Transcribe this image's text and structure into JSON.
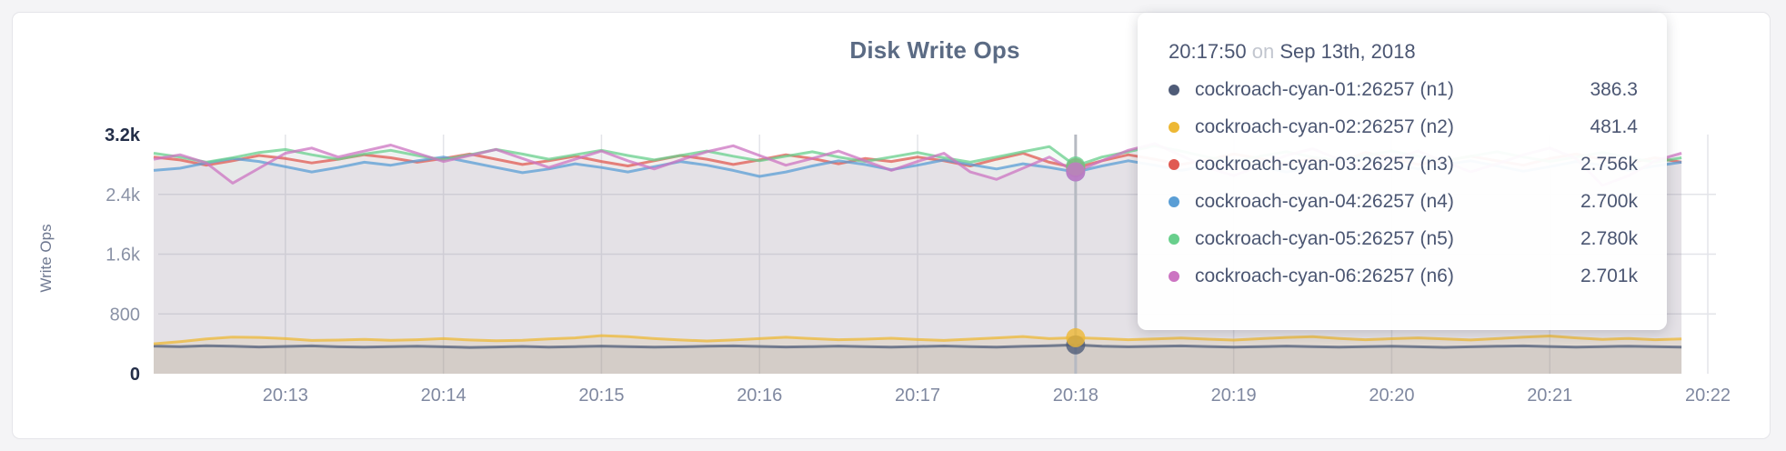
{
  "accent_colors": {
    "card_border": "#e5e5e9",
    "grid": "#e3e4e9",
    "hover_line": "#b6bac2",
    "axis_minmax": "#232e48",
    "axis_mid": "#8a92a6",
    "title": "#5b6b84",
    "tooltip_text": "#4b5672"
  },
  "tooltip": {
    "time": "20:17:50",
    "separator": "on",
    "date": "Sep 13th, 2018",
    "rows": [
      {
        "name": "cockroach-cyan-01:26257 (n1)",
        "value": "386.3",
        "color": "#4f5c78"
      },
      {
        "name": "cockroach-cyan-02:26257 (n2)",
        "value": "481.4",
        "color": "#edb835"
      },
      {
        "name": "cockroach-cyan-03:26257 (n3)",
        "value": "2.756k",
        "color": "#e05a52"
      },
      {
        "name": "cockroach-cyan-04:26257 (n4)",
        "value": "2.700k",
        "color": "#5a9ed5"
      },
      {
        "name": "cockroach-cyan-05:26257 (n5)",
        "value": "2.780k",
        "color": "#68cf8c"
      },
      {
        "name": "cockroach-cyan-06:26257 (n6)",
        "value": "2.701k",
        "color": "#cc74c2"
      }
    ]
  },
  "chart_data": {
    "type": "line",
    "title": "Disk Write Ops",
    "xlabel": "",
    "ylabel": "Write Ops",
    "ylim": [
      0,
      3200
    ],
    "grid": true,
    "legend_position": "hover-tooltip",
    "time_start": "20:12:10",
    "time_interval_sec": 10,
    "hover_index": 35,
    "hover_time": "20:17:50",
    "y_ticks": [
      {
        "v": 0,
        "label": "0"
      },
      {
        "v": 800,
        "label": "800"
      },
      {
        "v": 1600,
        "label": "1.6k"
      },
      {
        "v": 2400,
        "label": "2.4k"
      },
      {
        "v": 3200,
        "label": "3.2k"
      }
    ],
    "x_ticks": [
      {
        "i": 5,
        "label": "20:13"
      },
      {
        "i": 11,
        "label": "20:14"
      },
      {
        "i": 17,
        "label": "20:15"
      },
      {
        "i": 23,
        "label": "20:16"
      },
      {
        "i": 29,
        "label": "20:17"
      },
      {
        "i": 35,
        "label": "20:18"
      },
      {
        "i": 41,
        "label": "20:19"
      },
      {
        "i": 47,
        "label": "20:20"
      },
      {
        "i": 53,
        "label": "20:21"
      },
      {
        "i": 59,
        "label": "20:22"
      }
    ],
    "series": [
      {
        "name": "cockroach-cyan-01:26257 (n1)",
        "color": "#4f5c78",
        "hover_value": 386.3,
        "values": [
          370,
          362,
          375,
          368,
          358,
          365,
          372,
          360,
          355,
          362,
          368,
          360,
          352,
          358,
          365,
          357,
          362,
          370,
          363,
          355,
          360,
          368,
          372,
          365,
          358,
          363,
          370,
          362,
          356,
          364,
          371,
          363,
          357,
          366,
          373,
          386.3,
          368,
          360,
          366,
          372,
          364,
          356,
          363,
          370,
          362,
          355,
          361,
          368,
          360,
          353,
          360,
          367,
          372,
          364,
          357,
          363,
          369,
          361,
          355
        ]
      },
      {
        "name": "cockroach-cyan-02:26257 (n2)",
        "color": "#edb835",
        "hover_value": 481.4,
        "values": [
          400,
          430,
          465,
          490,
          485,
          470,
          445,
          450,
          460,
          448,
          455,
          470,
          452,
          440,
          448,
          465,
          480,
          510,
          495,
          470,
          452,
          438,
          452,
          470,
          488,
          470,
          455,
          462,
          475,
          458,
          445,
          462,
          480,
          498,
          470,
          481.4,
          470,
          455,
          465,
          478,
          462,
          450,
          468,
          485,
          495,
          472,
          455,
          468,
          480,
          465,
          452,
          470,
          490,
          505,
          480,
          460,
          472,
          455,
          465
        ]
      },
      {
        "name": "cockroach-cyan-03:26257 (n3)",
        "color": "#e05a52",
        "hover_value": 2756,
        "values": [
          2900,
          2860,
          2790,
          2850,
          2920,
          2880,
          2820,
          2870,
          2930,
          2890,
          2830,
          2880,
          2940,
          2870,
          2800,
          2850,
          2910,
          2840,
          2780,
          2850,
          2920,
          2870,
          2800,
          2860,
          2930,
          2880,
          2810,
          2880,
          2840,
          2900,
          2850,
          2780,
          2870,
          2950,
          2830,
          2756,
          2850,
          2930,
          2870,
          2800,
          2860,
          2940,
          2880,
          2810,
          2880,
          2830,
          2960,
          2890,
          2800,
          2850,
          2910,
          2850,
          2790,
          2880,
          2940,
          2870,
          2820,
          2890,
          2830
        ]
      },
      {
        "name": "cockroach-cyan-04:26257 (n4)",
        "color": "#5a9ed5",
        "hover_value": 2700,
        "values": [
          2720,
          2750,
          2820,
          2880,
          2840,
          2770,
          2700,
          2760,
          2830,
          2790,
          2850,
          2900,
          2830,
          2760,
          2690,
          2740,
          2810,
          2760,
          2700,
          2770,
          2840,
          2790,
          2720,
          2640,
          2700,
          2780,
          2850,
          2800,
          2730,
          2790,
          2860,
          2800,
          2740,
          2810,
          2760,
          2700,
          2780,
          2850,
          2790,
          2720,
          2780,
          2840,
          2770,
          2700,
          2760,
          2830,
          2880,
          2810,
          2740,
          2800,
          2850,
          2780,
          2710,
          2770,
          2840,
          2790,
          2720,
          2780,
          2830
        ]
      },
      {
        "name": "cockroach-cyan-05:26257 (n5)",
        "color": "#68cf8c",
        "hover_value": 2780,
        "values": [
          2950,
          2900,
          2830,
          2890,
          2960,
          3000,
          2930,
          2870,
          2940,
          2990,
          2920,
          2860,
          2930,
          3000,
          2940,
          2870,
          2930,
          2990,
          2920,
          2860,
          2920,
          2980,
          2910,
          2850,
          2910,
          2970,
          2900,
          2840,
          2900,
          2960,
          2890,
          2830,
          2900,
          2970,
          3040,
          2780,
          2900,
          2970,
          3050,
          2980,
          2900,
          2840,
          2910,
          2970,
          2900,
          2850,
          2920,
          2980,
          2910,
          2850,
          2910,
          2970,
          2900,
          2840,
          2900,
          2960,
          2890,
          2830,
          2890
        ]
      },
      {
        "name": "cockroach-cyan-06:26257 (n6)",
        "color": "#cc74c2",
        "hover_value": 2701,
        "values": [
          2870,
          2930,
          2820,
          2550,
          2750,
          2950,
          3020,
          2900,
          2980,
          3060,
          2950,
          2840,
          2920,
          3000,
          2880,
          2760,
          2870,
          2980,
          2850,
          2740,
          2860,
          2970,
          3050,
          2920,
          2790,
          2880,
          2980,
          2850,
          2720,
          2840,
          2950,
          2700,
          2600,
          2750,
          2900,
          2701,
          2850,
          2990,
          3080,
          2920,
          2760,
          2650,
          2780,
          2920,
          3010,
          2870,
          2740,
          2860,
          2980,
          2840,
          2700,
          2810,
          2930,
          3020,
          2880,
          2520,
          2650,
          2850,
          2950
        ]
      }
    ]
  }
}
